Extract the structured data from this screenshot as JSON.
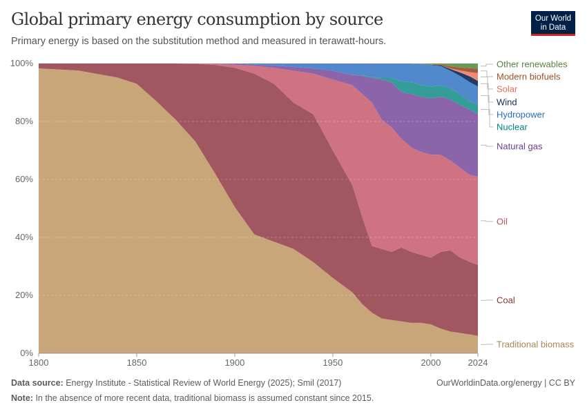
{
  "header": {
    "title": "Global primary energy consumption by source",
    "subtitle": "Primary energy is based on the substitution method and measured in terawatt-hours.",
    "logo_text": "Our World in Data"
  },
  "footer": {
    "source_label": "Data source:",
    "source_text": "Energy Institute - Statistical Review of World Energy (2025); Smil (2017)",
    "link": "OurWorldinData.org/energy | CC BY",
    "note_label": "Note:",
    "note_text": "In the absence of more recent data, traditional biomass is assumed constant since 2015."
  },
  "chart_data": {
    "type": "area",
    "stacked": "percent",
    "title": "Global primary energy consumption by source",
    "ylim": [
      0,
      100
    ],
    "xlim": [
      1800,
      2024
    ],
    "grid": "horizontal dashed",
    "legend": "right, labels at line ends",
    "y_ticks": [
      "0%",
      "20%",
      "40%",
      "60%",
      "80%",
      "100%"
    ],
    "y_tick_values": [
      0,
      20,
      40,
      60,
      80,
      100
    ],
    "x_ticks": [
      "1800",
      "1850",
      "1900",
      "1950",
      "2000",
      "2024"
    ],
    "x_tick_values": [
      1800,
      1850,
      1900,
      1950,
      2000,
      2024
    ],
    "x": [
      1800,
      1820,
      1840,
      1850,
      1860,
      1870,
      1880,
      1890,
      1900,
      1910,
      1920,
      1930,
      1940,
      1950,
      1960,
      1965,
      1970,
      1975,
      1980,
      1985,
      1990,
      1995,
      2000,
      2005,
      2010,
      2015,
      2020,
      2024
    ],
    "series": [
      {
        "name": "Traditional biomass",
        "color": "#c8a67a",
        "label_color": "#a88652",
        "values": [
          98.3,
          97.6,
          95.2,
          93,
          87,
          80.5,
          73,
          62,
          50.5,
          41,
          38.5,
          36,
          31.5,
          26,
          21,
          17,
          14,
          12,
          11.5,
          11,
          10.5,
          10.5,
          10,
          8.5,
          7.5,
          7,
          6.5,
          6
        ]
      },
      {
        "name": "Coal",
        "color": "#a0575f",
        "label_color": "#883039",
        "values": [
          1.7,
          2.4,
          4.8,
          7,
          13,
          19.5,
          26.9,
          37.5,
          48,
          55.5,
          54.5,
          50.5,
          51,
          44,
          37,
          30,
          23,
          24,
          23.5,
          25.5,
          24.5,
          23.5,
          23,
          26.5,
          28,
          26,
          25,
          24.5
        ]
      },
      {
        "name": "Oil",
        "color": "#cf7282",
        "label_color": "#c15065",
        "values": [
          0,
          0,
          0,
          0,
          0,
          0,
          0.1,
          0.4,
          1.1,
          2.7,
          5.5,
          11,
          14,
          24.5,
          34.5,
          42.5,
          49.5,
          44.5,
          43,
          37.5,
          36,
          35.5,
          35.5,
          33.5,
          31,
          31,
          30,
          30.5
        ]
      },
      {
        "name": "Natural gas",
        "color": "#8c64a9",
        "label_color": "#6d3e91",
        "values": [
          0,
          0,
          0,
          0,
          0,
          0,
          0,
          0.1,
          0.3,
          0.4,
          0.8,
          1.3,
          1.8,
          3,
          3.5,
          6.3,
          8.5,
          14,
          15.5,
          16.2,
          18.5,
          19,
          19.4,
          20,
          21,
          21.7,
          22.5,
          21.6
        ]
      },
      {
        "name": "Nuclear",
        "color": "#349d98",
        "label_color": "#00847e",
        "values": [
          0,
          0,
          0,
          0,
          0,
          0,
          0,
          0,
          0,
          0,
          0,
          0,
          0,
          0,
          0,
          0.1,
          0.3,
          0.5,
          1.5,
          3.6,
          4,
          4,
          4.2,
          3.8,
          4,
          3.6,
          3,
          3.1
        ]
      },
      {
        "name": "Hydropower",
        "color": "#5288cc",
        "label_color": "#286bbb",
        "values": [
          0,
          0,
          0,
          0,
          0,
          0,
          0,
          0,
          0.1,
          0.4,
          0.7,
          1.2,
          1.7,
          2.5,
          4,
          4.1,
          4.7,
          5,
          5,
          6.2,
          6.5,
          7.3,
          7.4,
          6.8,
          6,
          6.4,
          6.5,
          6.4
        ]
      },
      {
        "name": "Wind",
        "color": "#213c67",
        "label_color": "#0f2a55",
        "values": [
          0,
          0,
          0,
          0,
          0,
          0,
          0,
          0,
          0,
          0,
          0,
          0,
          0,
          0,
          0,
          0,
          0,
          0,
          0,
          0,
          0,
          0,
          0.1,
          0.3,
          0.6,
          1.2,
          2,
          1.9
        ]
      },
      {
        "name": "Solar",
        "color": "#ef8b79",
        "label_color": "#e56e5a",
        "values": [
          0,
          0,
          0,
          0,
          0,
          0,
          0,
          0,
          0,
          0,
          0,
          0,
          0,
          0,
          0,
          0,
          0,
          0,
          0,
          0,
          0,
          0,
          0,
          0,
          0.2,
          0.7,
          1.5,
          2.7
        ]
      },
      {
        "name": "Modern biofuels",
        "color": "#a85a3f",
        "label_color": "#9a5129",
        "values": [
          0,
          0,
          0,
          0,
          0,
          0,
          0,
          0,
          0,
          0,
          0,
          0,
          0,
          0,
          0,
          0,
          0,
          0,
          0,
          0,
          0,
          0,
          0.1,
          0.3,
          0.7,
          1,
          1.4,
          1.5
        ]
      },
      {
        "name": "Other renewables",
        "color": "#6a9a58",
        "label_color": "#578145",
        "values": [
          0,
          0,
          0,
          0,
          0,
          0,
          0,
          0,
          0,
          0,
          0,
          0,
          0,
          0,
          0,
          0,
          0,
          0,
          0,
          0,
          0,
          0.2,
          0.3,
          0.3,
          1,
          1.4,
          1.6,
          1.8
        ]
      }
    ]
  }
}
